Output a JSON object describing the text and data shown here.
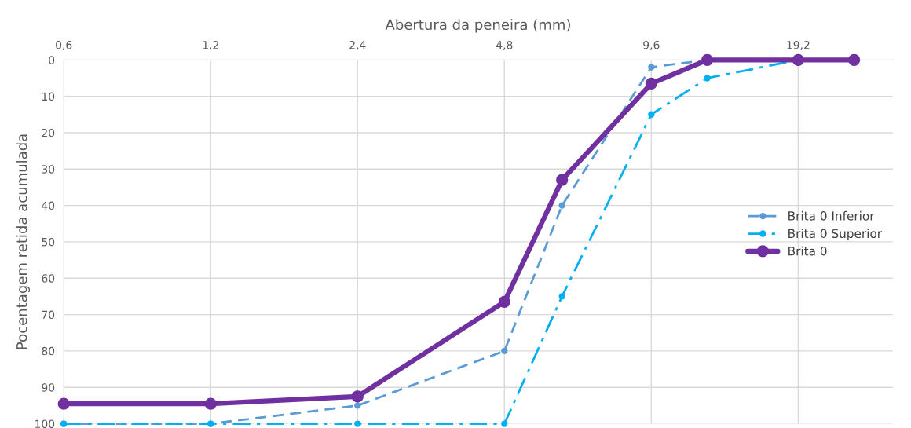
{
  "chart_data": {
    "type": "line",
    "xlabel": "Abertura da peneira (mm)",
    "ylabel": "Pocentagem retida acumulada",
    "log": "x",
    "x": [
      0.6,
      1.2,
      2.4,
      4.8,
      6.3,
      9.6,
      12.5,
      19.2,
      25
    ],
    "series": [
      {
        "name": "Brita 0 Inferior",
        "color": "#5b9bd5",
        "line_style": "dashed",
        "marker": "circle",
        "values": [
          100,
          100,
          95,
          80,
          40,
          2,
          0,
          0,
          0
        ]
      },
      {
        "name": "Brita 0 Superior",
        "color": "#00b0f0",
        "line_style": "dashdot",
        "marker": "circle",
        "values": [
          100,
          100,
          100,
          100,
          65,
          15,
          5,
          0,
          0
        ]
      },
      {
        "name": "Brita 0",
        "color": "#7030a0",
        "line_style": "solid",
        "marker": "circle",
        "values": [
          94.5,
          94.5,
          92.5,
          66.5,
          33,
          6.5,
          0,
          0,
          0
        ]
      }
    ],
    "xlim": [
      0.6,
      30
    ],
    "xticks": [
      {
        "value": 0.6,
        "label": "0,6"
      },
      {
        "value": 1.2,
        "label": "1,2"
      },
      {
        "value": 2.4,
        "label": "2,4"
      },
      {
        "value": 4.8,
        "label": "4,8"
      },
      {
        "value": 9.6,
        "label": "9,6"
      },
      {
        "value": 19.2,
        "label": "19,2"
      }
    ],
    "ylim": [
      100,
      0
    ],
    "yticks": [
      0,
      10,
      20,
      30,
      40,
      50,
      60,
      70,
      80,
      90,
      100
    ],
    "grid": true,
    "legend": "right"
  }
}
